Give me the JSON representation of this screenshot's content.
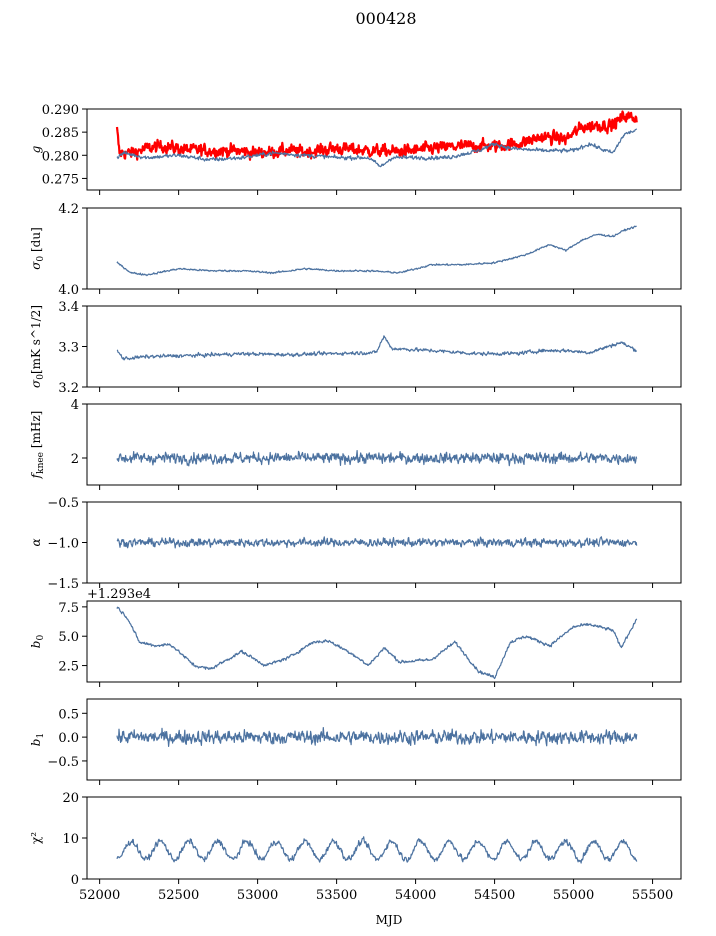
{
  "figure": {
    "suptitle": "000428",
    "xlabel": "MJD",
    "x_ticks": [
      52000,
      52500,
      53000,
      53500,
      54000,
      54500,
      55000,
      55500
    ],
    "x_range": [
      51920,
      55680
    ]
  },
  "chart_data": [
    {
      "type": "line",
      "ylabel": "g",
      "ylim": [
        0.2725,
        0.29
      ],
      "yticks": [
        0.275,
        0.28,
        0.285,
        0.29
      ],
      "ytick_labels": [
        "0.275",
        "0.280",
        "0.285",
        "0.290"
      ],
      "series": [
        {
          "color": "#ff0000",
          "line_width": 2.2,
          "x": [
            52110,
            52125,
            52200,
            52300,
            52400,
            52550,
            52700,
            52850,
            53000,
            53200,
            53300,
            53500,
            53700,
            53900,
            54100,
            54300,
            54500,
            54650,
            54800,
            54950,
            55050,
            55150,
            55250,
            55320,
            55400
          ],
          "y": [
            0.2855,
            0.2805,
            0.2805,
            0.2815,
            0.282,
            0.2812,
            0.281,
            0.281,
            0.2805,
            0.281,
            0.2807,
            0.2815,
            0.281,
            0.2808,
            0.2815,
            0.282,
            0.282,
            0.2825,
            0.284,
            0.2835,
            0.286,
            0.2865,
            0.2865,
            0.2885,
            0.288
          ],
          "noise": 0.0018
        },
        {
          "color": "#4c72a0",
          "line_width": 1.2,
          "x": [
            52110,
            52150,
            52300,
            52500,
            52700,
            52900,
            53100,
            53300,
            53500,
            53700,
            53780,
            53850,
            54000,
            54200,
            54400,
            54500,
            54600,
            54800,
            55000,
            55100,
            55200,
            55250,
            55320,
            55400
          ],
          "y": [
            0.2795,
            0.2805,
            0.2795,
            0.28,
            0.279,
            0.2795,
            0.2805,
            0.28,
            0.2795,
            0.2795,
            0.2775,
            0.2795,
            0.2795,
            0.2795,
            0.281,
            0.2825,
            0.2815,
            0.281,
            0.281,
            0.2825,
            0.281,
            0.2805,
            0.2845,
            0.2855
          ],
          "noise": 0.0006
        }
      ]
    },
    {
      "type": "line",
      "ylabel": "σ0 [du]",
      "ylim": [
        4.0,
        4.2
      ],
      "yticks": [
        4.0,
        4.2
      ],
      "ytick_labels": [
        "4.0",
        "4.2"
      ],
      "series": [
        {
          "color": "#4c72a0",
          "line_width": 1.2,
          "x": [
            52110,
            52200,
            52300,
            52500,
            52700,
            52900,
            53100,
            53300,
            53500,
            53700,
            53900,
            54100,
            54300,
            54500,
            54700,
            54850,
            54950,
            55050,
            55150,
            55250,
            55320,
            55400
          ],
          "y": [
            4.065,
            4.04,
            4.035,
            4.05,
            4.045,
            4.045,
            4.04,
            4.05,
            4.045,
            4.045,
            4.04,
            4.06,
            4.06,
            4.065,
            4.085,
            4.11,
            4.095,
            4.12,
            4.135,
            4.13,
            4.145,
            4.155
          ],
          "noise": 0.003
        }
      ]
    },
    {
      "type": "line",
      "ylabel": "σ0[mK s^1/2]",
      "ylim": [
        3.2,
        3.4
      ],
      "yticks": [
        3.2,
        3.3,
        3.4
      ],
      "ytick_labels": [
        "3.2",
        "3.3",
        "3.4"
      ],
      "series": [
        {
          "color": "#4c72a0",
          "line_width": 1.2,
          "x": [
            52110,
            52150,
            52300,
            52600,
            52900,
            53200,
            53500,
            53750,
            53800,
            53850,
            54100,
            54400,
            54650,
            54800,
            54950,
            55100,
            55300,
            55400
          ],
          "y": [
            3.29,
            3.27,
            3.275,
            3.278,
            3.282,
            3.28,
            3.283,
            3.285,
            3.325,
            3.295,
            3.29,
            3.282,
            3.283,
            3.29,
            3.29,
            3.285,
            3.31,
            3.29
          ],
          "noise": 0.006
        }
      ]
    },
    {
      "type": "line",
      "ylabel": "fknee [mHz]",
      "ylim": [
        1.0,
        4.0
      ],
      "yticks": [
        2,
        4
      ],
      "ytick_labels": [
        "2",
        "4"
      ],
      "series": [
        {
          "color": "#4c72a0",
          "line_width": 1.2,
          "x": [
            52110,
            55400
          ],
          "y": [
            2.0,
            2.0
          ],
          "noise": 0.28
        }
      ]
    },
    {
      "type": "line",
      "ylabel": "α",
      "ylim": [
        -1.5,
        -0.5
      ],
      "yticks": [
        -1.5,
        -1.0,
        -0.5
      ],
      "ytick_labels": [
        "−1.5",
        "−1.0",
        "−0.5"
      ],
      "series": [
        {
          "color": "#4c72a0",
          "line_width": 1.2,
          "x": [
            52110,
            55400
          ],
          "y": [
            -1.0,
            -1.0
          ],
          "noise": 0.07
        }
      ]
    },
    {
      "type": "line",
      "ylabel": "b0",
      "offset_text": "+1.293e4",
      "ylim": [
        1.1,
        8.0
      ],
      "yticks": [
        2.5,
        5.0,
        7.5
      ],
      "ytick_labels": [
        "2.5",
        "5.0",
        "7.5"
      ],
      "series": [
        {
          "color": "#4c72a0",
          "line_width": 1.2,
          "x": [
            52110,
            52180,
            52250,
            52350,
            52450,
            52600,
            52700,
            52900,
            53050,
            53200,
            53350,
            53450,
            53600,
            53700,
            53800,
            53900,
            54100,
            54250,
            54400,
            54500,
            54600,
            54700,
            54850,
            55000,
            55100,
            55250,
            55300,
            55400
          ],
          "y": [
            7.5,
            6.5,
            4.5,
            4.2,
            4.3,
            2.5,
            2.2,
            3.7,
            2.5,
            3.2,
            4.5,
            4.6,
            3.5,
            2.5,
            4.0,
            2.8,
            3.0,
            4.5,
            2.0,
            1.5,
            4.5,
            5.0,
            4.2,
            5.8,
            6.0,
            5.5,
            4.0,
            6.5
          ],
          "noise": 0.18
        }
      ]
    },
    {
      "type": "line",
      "ylabel": "b1",
      "ylim": [
        -0.9,
        0.8
      ],
      "yticks": [
        -0.5,
        0.0,
        0.5
      ],
      "ytick_labels": [
        "−0.5",
        "0.0",
        "0.5"
      ],
      "series": [
        {
          "color": "#4c72a0",
          "line_width": 1.2,
          "x": [
            52110,
            55400
          ],
          "y": [
            0.0,
            0.0
          ],
          "noise": 0.2
        }
      ]
    },
    {
      "type": "line",
      "ylabel": "χ²",
      "ylim": [
        0,
        20
      ],
      "yticks": [
        0,
        10,
        20
      ],
      "ytick_labels": [
        "0",
        "10",
        "20"
      ],
      "series": [
        {
          "color": "#4c72a0",
          "line_width": 1.2,
          "x": [
            52110,
            55400
          ],
          "y": [
            7.0,
            7.0
          ],
          "noise": 1.0,
          "oscillation": {
            "amplitude": 2.2,
            "period": 183
          }
        }
      ]
    }
  ]
}
